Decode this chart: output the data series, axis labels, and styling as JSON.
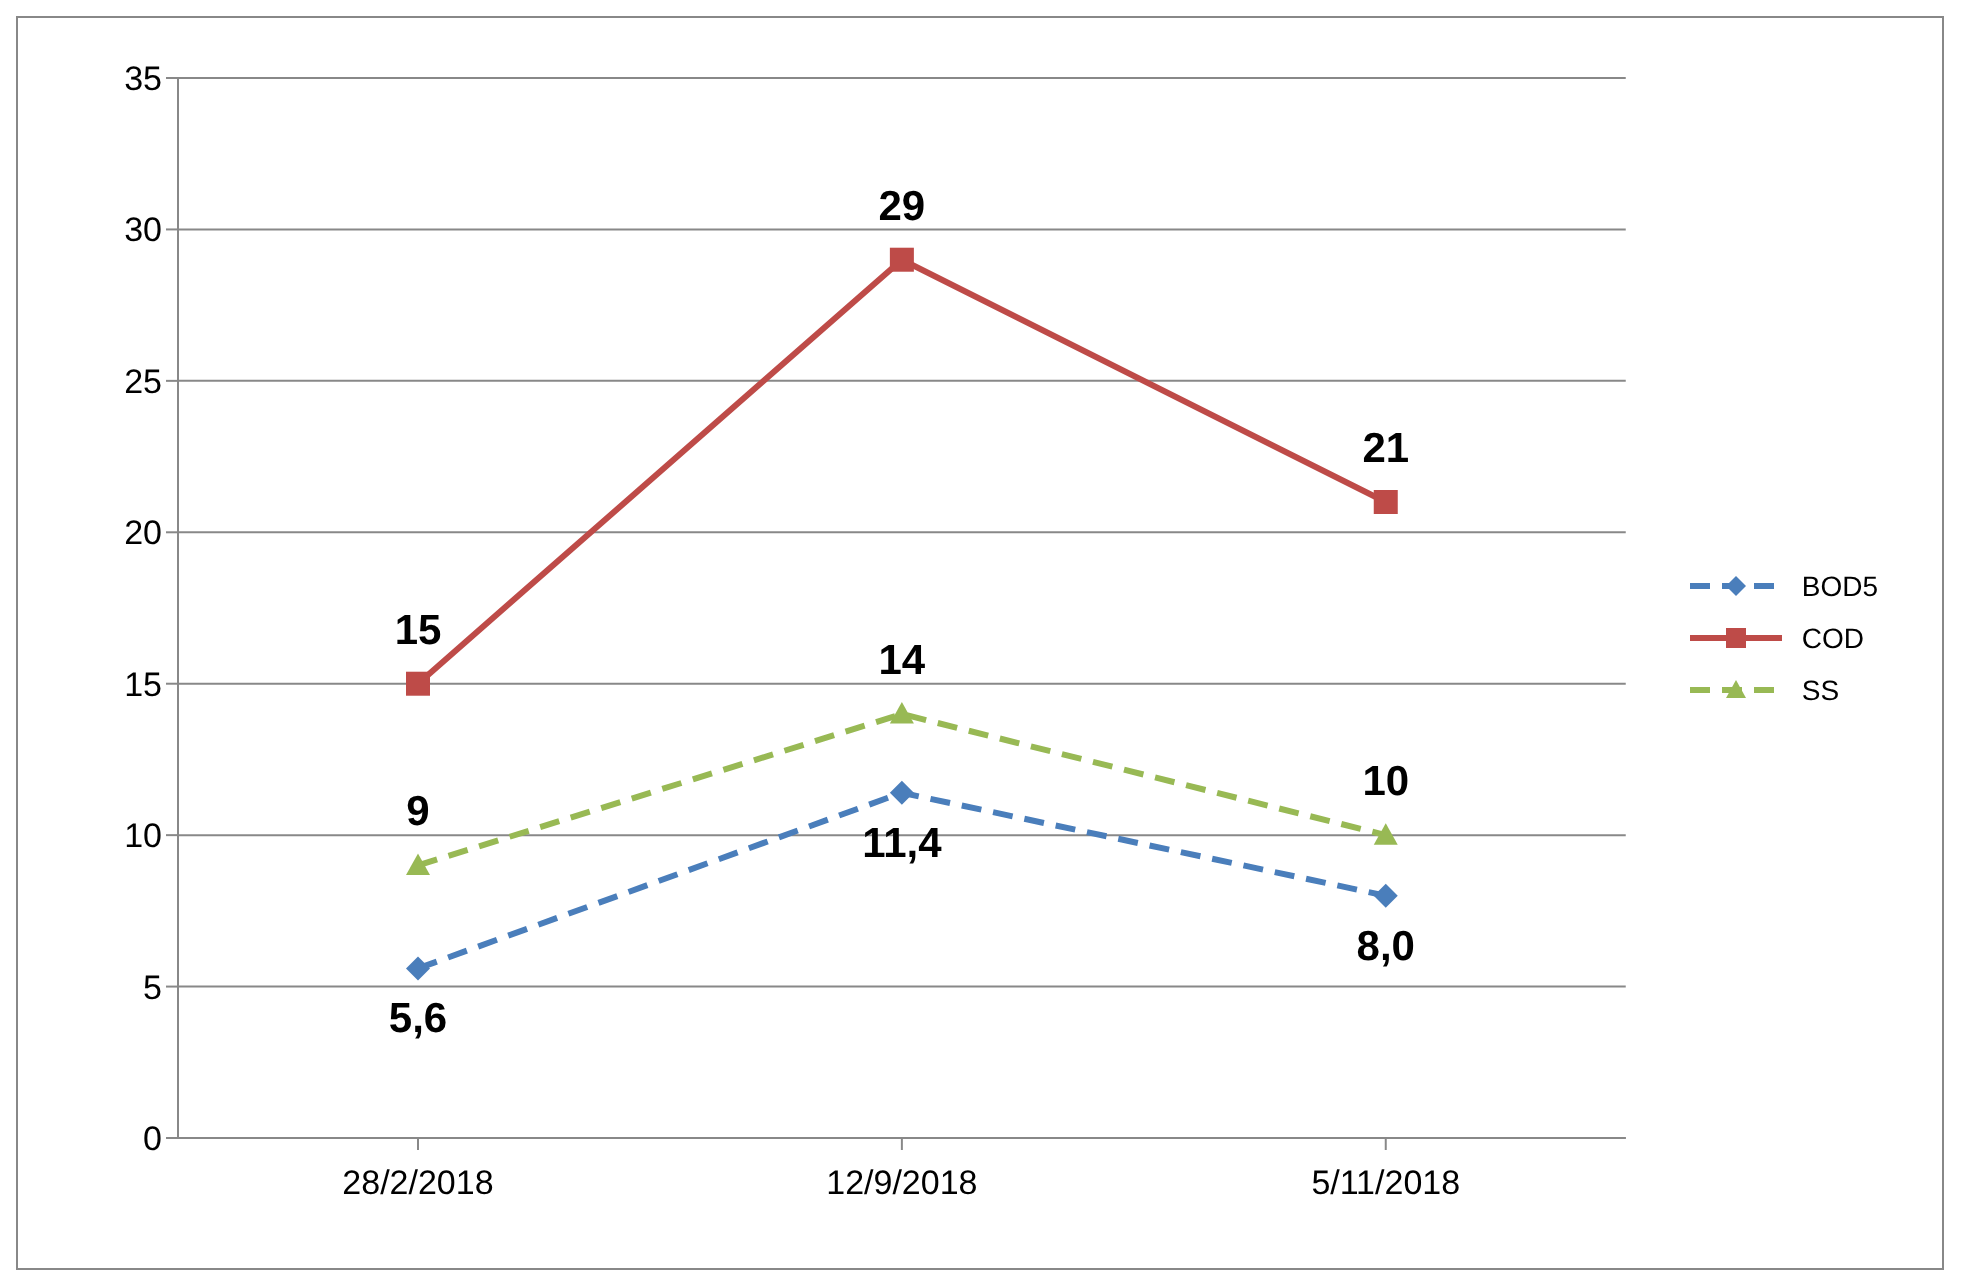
{
  "chart_data": {
    "type": "line",
    "categories": [
      "28/2/2018",
      "12/9/2018",
      "5/11/2018"
    ],
    "series": [
      {
        "name": "BOD5",
        "color": "#4a7ebb",
        "values": [
          5.6,
          11.4,
          8.0
        ],
        "value_labels": [
          "5,6",
          "11,4",
          "8,0"
        ],
        "marker": "diamond",
        "line_style": "dashed"
      },
      {
        "name": "COD",
        "color": "#be4b48",
        "values": [
          15,
          29,
          21
        ],
        "value_labels": [
          "15",
          "29",
          "21"
        ],
        "marker": "square",
        "line_style": "solid"
      },
      {
        "name": "SS",
        "color": "#98b954",
        "values": [
          9,
          14,
          10
        ],
        "value_labels": [
          "9",
          "14",
          "10"
        ],
        "marker": "triangle",
        "line_style": "dashed"
      }
    ],
    "ylim": [
      0,
      35
    ],
    "yticks": [
      0,
      5,
      10,
      15,
      20,
      25,
      30,
      35
    ],
    "grid": "y",
    "legend": "right"
  }
}
